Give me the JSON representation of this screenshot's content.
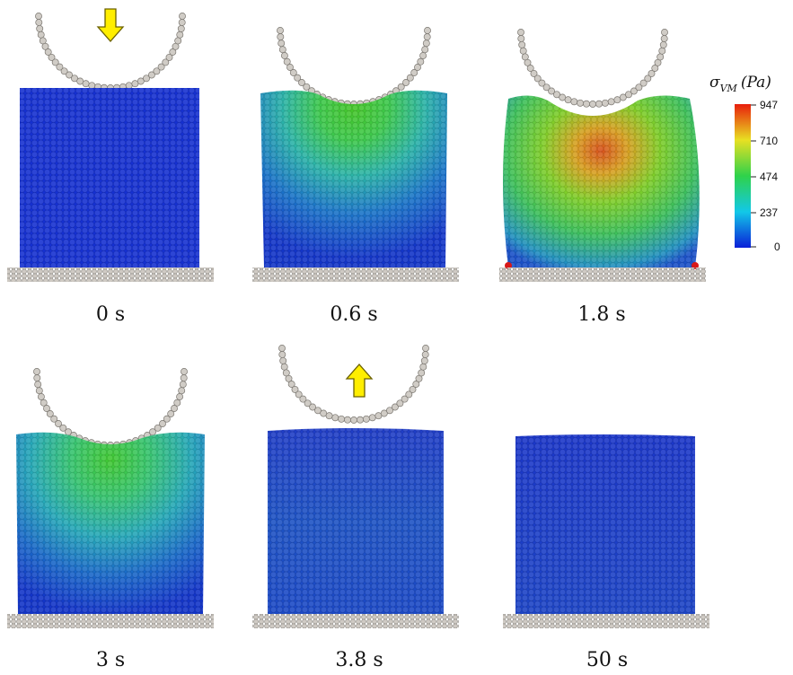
{
  "colorbar": {
    "title_symbol": "σ",
    "title_subscript": "VM",
    "title_unit": "(Pa)",
    "ticks": [
      "947",
      "710",
      "474",
      "237",
      "0"
    ],
    "colors": [
      "#0a1fd8",
      "#12c8e8",
      "#2fd24a",
      "#e8e022",
      "#e81e0c"
    ]
  },
  "panels": [
    {
      "time_label": "0 s",
      "arrow": "down"
    },
    {
      "time_label": "0.6 s",
      "arrow": ""
    },
    {
      "time_label": "1.8 s",
      "arrow": ""
    },
    {
      "time_label": "3 s",
      "arrow": ""
    },
    {
      "time_label": "3.8 s",
      "arrow": "up"
    },
    {
      "time_label": "50 s",
      "arrow": ""
    }
  ],
  "colors": {
    "particle_blue": "#1530d0",
    "arrow_yellow": "#ffee00",
    "indenter_gray": "#d0ccc6"
  }
}
